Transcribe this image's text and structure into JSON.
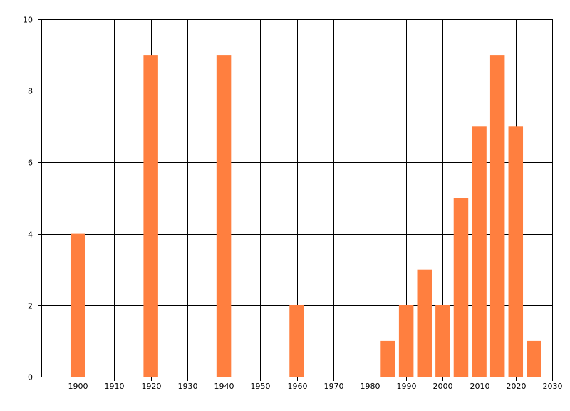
{
  "chart_data": {
    "type": "bar",
    "title": "",
    "xlabel": "",
    "ylabel": "",
    "xlim": [
      1890,
      2030
    ],
    "ylim": [
      0,
      10
    ],
    "x_ticks": [
      1900,
      1910,
      1920,
      1930,
      1940,
      1950,
      1960,
      1970,
      1980,
      1990,
      2000,
      2010,
      2020,
      2030
    ],
    "y_ticks": [
      0,
      2,
      4,
      6,
      8,
      10
    ],
    "x_tick_labels": [
      "1900",
      "1910",
      "1920",
      "1930",
      "1940",
      "1950",
      "1960",
      "1970",
      "1980",
      "1990",
      "2000",
      "2010",
      "2020",
      "2030"
    ],
    "y_tick_labels": [
      "0",
      "2",
      "4",
      "6",
      "8",
      "10"
    ],
    "grid": true,
    "bar_width_years": 4,
    "bar_color": "#ff7f3f",
    "bars": [
      {
        "x": 1900,
        "value": 4
      },
      {
        "x": 1920,
        "value": 9
      },
      {
        "x": 1940,
        "value": 9
      },
      {
        "x": 1960,
        "value": 2
      },
      {
        "x": 1985,
        "value": 1
      },
      {
        "x": 1990,
        "value": 2
      },
      {
        "x": 1995,
        "value": 3
      },
      {
        "x": 2000,
        "value": 2
      },
      {
        "x": 2005,
        "value": 5
      },
      {
        "x": 2010,
        "value": 7
      },
      {
        "x": 2015,
        "value": 9
      },
      {
        "x": 2020,
        "value": 7
      },
      {
        "x": 2025,
        "value": 1
      }
    ]
  }
}
